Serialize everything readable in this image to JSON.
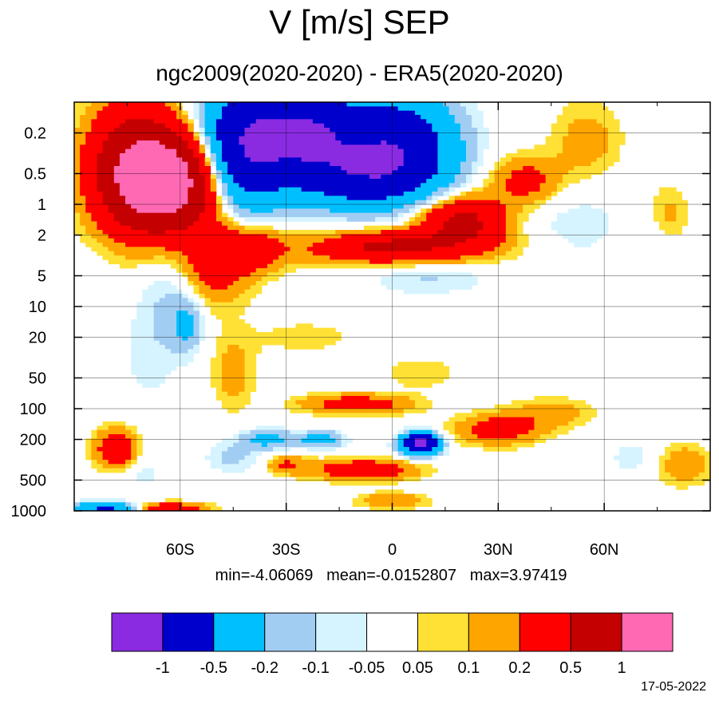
{
  "chart_data": {
    "type": "heatmap",
    "title": "V [m/s] SEP",
    "subtitle": "ngc2009(2020-2020) - ERA5(2020-2020)",
    "xlabel": "",
    "ylabel": "",
    "x_axis": {
      "range": [
        -90,
        90
      ],
      "ticks": [
        {
          "value": -60,
          "label": "60S"
        },
        {
          "value": -30,
          "label": "30S"
        },
        {
          "value": 0,
          "label": "0"
        },
        {
          "value": 30,
          "label": "30N"
        },
        {
          "value": 60,
          "label": "60N"
        }
      ]
    },
    "y_axis": {
      "scale": "log",
      "reversed": true,
      "range": [
        1000,
        0.1
      ],
      "ticks": [
        {
          "value": 0.2,
          "label": "0.2"
        },
        {
          "value": 0.5,
          "label": "0.5"
        },
        {
          "value": 1,
          "label": "1"
        },
        {
          "value": 2,
          "label": "2"
        },
        {
          "value": 5,
          "label": "5"
        },
        {
          "value": 10,
          "label": "10"
        },
        {
          "value": 20,
          "label": "20"
        },
        {
          "value": 50,
          "label": "50"
        },
        {
          "value": 100,
          "label": "100"
        },
        {
          "value": 200,
          "label": "200"
        },
        {
          "value": 500,
          "label": "500"
        },
        {
          "value": 1000,
          "label": "1000"
        }
      ]
    },
    "grid": true,
    "stats": {
      "min": "min=-4.06069",
      "mean": "mean=-0.0152807",
      "max": "max=3.97419"
    },
    "colorbar": {
      "placement": "bottom",
      "colors": [
        "#8a2be2",
        "#0000cd",
        "#00bfff",
        "#a2cdf3",
        "#d6f4ff",
        "#ffffff",
        "#ffe135",
        "#ffa500",
        "#ff0000",
        "#c40000",
        "#ff69b4"
      ],
      "labels": [
        "-1",
        "-0.5",
        "-0.2",
        "-0.1",
        "-0.05",
        "0.05",
        "0.1",
        "0.2",
        "0.5",
        "1"
      ]
    },
    "features": [
      {
        "lat": -64,
        "p": 0.6,
        "v": 1.4,
        "rlat": 14,
        "rlog": 0.45
      },
      {
        "lat": -74,
        "p": 0.4,
        "v": 0.6,
        "rlat": 12,
        "rlog": 0.6
      },
      {
        "lat": -50,
        "p": 3.5,
        "v": 0.35,
        "rlat": 10,
        "rlog": 0.4
      },
      {
        "lat": -38,
        "p": 2.6,
        "v": 0.25,
        "rlat": 8,
        "rlog": 0.25
      },
      {
        "lat": -43,
        "p": 0.3,
        "v": -0.8,
        "rlat": 12,
        "rlog": 0.6
      },
      {
        "lat": -25,
        "p": 0.2,
        "v": -1.0,
        "rlat": 16,
        "rlog": 0.4
      },
      {
        "lat": 2,
        "p": 0.25,
        "v": -0.8,
        "rlat": 15,
        "rlog": 0.45
      },
      {
        "lat": -10,
        "p": 0.55,
        "v": -0.6,
        "rlat": 20,
        "rlog": 0.3
      },
      {
        "lat": -62,
        "p": 8,
        "v": -0.12,
        "rlat": 8,
        "rlog": 0.6
      },
      {
        "lat": -58,
        "p": 15,
        "v": -0.2,
        "rlat": 4,
        "rlog": 0.25
      },
      {
        "lat": -70,
        "p": 30,
        "v": -0.06,
        "rlat": 8,
        "rlog": 0.6
      },
      {
        "lat": 10,
        "p": 5,
        "v": -0.12,
        "rlat": 18,
        "rlog": 0.18
      },
      {
        "lat": 52,
        "p": 1.5,
        "v": -0.08,
        "rlat": 14,
        "rlog": 0.5
      },
      {
        "lat": 38,
        "p": 0.7,
        "v": -0.08,
        "rlat": 10,
        "rlog": 0.3
      },
      {
        "lat": 75,
        "p": 2.2,
        "v": -0.06,
        "rlat": 8,
        "rlog": 0.4
      },
      {
        "lat": 20,
        "p": 1.5,
        "v": 0.6,
        "rlat": 12,
        "rlog": 0.25
      },
      {
        "lat": 38,
        "p": 0.6,
        "v": 0.35,
        "rlat": 10,
        "rlog": 0.25
      },
      {
        "lat": 0,
        "p": 2.6,
        "v": 0.4,
        "rlat": 16,
        "rlog": 0.14
      },
      {
        "lat": -5,
        "p": 2.7,
        "v": 0.2,
        "rlat": 36,
        "rlog": 0.18
      },
      {
        "lat": 55,
        "p": 0.25,
        "v": 0.15,
        "rlat": 10,
        "rlog": 0.4
      },
      {
        "lat": 78,
        "p": 1.3,
        "v": 0.15,
        "rlat": 6,
        "rlog": 0.3
      },
      {
        "lat": -45,
        "p": 45,
        "v": 0.15,
        "rlat": 6,
        "rlog": 0.35
      },
      {
        "lat": -25,
        "p": 20,
        "v": 0.07,
        "rlat": 18,
        "rlog": 0.2
      },
      {
        "lat": 8,
        "p": 45,
        "v": 0.1,
        "rlat": 10,
        "rlog": 0.15
      },
      {
        "lat": -10,
        "p": 90,
        "v": 0.3,
        "rlat": 16,
        "rlog": 0.1
      },
      {
        "lat": 30,
        "p": 160,
        "v": 0.3,
        "rlat": 12,
        "rlog": 0.15
      },
      {
        "lat": 8,
        "p": 220,
        "v": -1.2,
        "rlat": 5,
        "rlog": 0.1
      },
      {
        "lat": 45,
        "p": 110,
        "v": 0.15,
        "rlat": 12,
        "rlog": 0.15
      },
      {
        "lat": -78,
        "p": 250,
        "v": 0.4,
        "rlat": 6,
        "rlog": 0.2
      },
      {
        "lat": -8,
        "p": 400,
        "v": 0.4,
        "rlat": 14,
        "rlog": 0.1
      },
      {
        "lat": -35,
        "p": 200,
        "v": -0.25,
        "rlat": 8,
        "rlog": 0.1
      },
      {
        "lat": -20,
        "p": 200,
        "v": -0.3,
        "rlat": 6,
        "rlog": 0.08
      },
      {
        "lat": -45,
        "p": 300,
        "v": -0.12,
        "rlat": 8,
        "rlog": 0.15
      },
      {
        "lat": 70,
        "p": 300,
        "v": -0.08,
        "rlat": 10,
        "rlog": 0.2
      },
      {
        "lat": -72,
        "p": 400,
        "v": -0.08,
        "rlat": 8,
        "rlog": 0.2
      },
      {
        "lat": 82,
        "p": 350,
        "v": 0.2,
        "rlat": 8,
        "rlog": 0.2
      },
      {
        "lat": -30,
        "p": 350,
        "v": 0.2,
        "rlat": 6,
        "rlog": 0.1
      },
      {
        "lat": 0,
        "p": 800,
        "v": 0.2,
        "rlat": 10,
        "rlog": 0.08
      },
      {
        "lat": -80,
        "p": 950,
        "v": -0.6,
        "rlat": 10,
        "rlog": 0.06
      },
      {
        "lat": -65,
        "p": 950,
        "v": 0.4,
        "rlat": 12,
        "rlog": 0.06
      }
    ]
  }
}
